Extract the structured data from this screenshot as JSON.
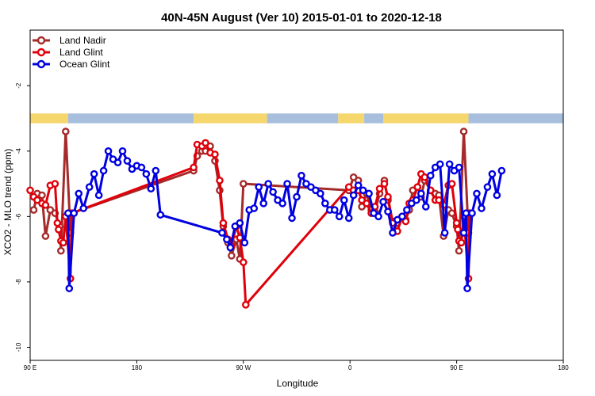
{
  "chart_data": {
    "type": "line",
    "title": "40N-45N August (Ver 10)   2015-01-01 to 2020-12-18",
    "xlabel": "Longitude",
    "ylabel": "XCO2 - MLO trend (ppm)",
    "xlim": [
      90,
      540
    ],
    "ylim": [
      -10.4,
      -0.3
    ],
    "x_ticks": [
      {
        "value": 90,
        "label": "90 E"
      },
      {
        "value": 180,
        "label": "180"
      },
      {
        "value": 270,
        "label": "90 W"
      },
      {
        "value": 360,
        "label": "0"
      },
      {
        "value": 450,
        "label": "90 E"
      },
      {
        "value": 540,
        "label": "180"
      }
    ],
    "y_ticks": [
      {
        "value": -2,
        "label": "-2"
      },
      {
        "value": -4,
        "label": "-4"
      },
      {
        "value": -6,
        "label": "-6"
      },
      {
        "value": -8,
        "label": "-8"
      },
      {
        "value": -10,
        "label": "-10"
      }
    ],
    "legend": {
      "placement": "top-left"
    },
    "series": [
      {
        "name": "Land Nadir",
        "color": "#a52a2a",
        "points": [
          [
            93,
            -5.8
          ],
          [
            96,
            -5.3
          ],
          [
            100,
            -5.35
          ],
          [
            103,
            -6.6
          ],
          [
            107,
            -5.8
          ],
          [
            111,
            -5.9
          ],
          [
            115,
            -6.3
          ],
          [
            116,
            -7.05
          ],
          [
            120,
            -3.4
          ],
          [
            124,
            -6.5
          ],
          [
            125,
            -5.9
          ],
          [
            228,
            -4.6
          ],
          [
            231,
            -4.15
          ],
          [
            235,
            -4.0
          ],
          [
            238,
            -4.0
          ],
          [
            242,
            -3.85
          ],
          [
            246,
            -4.3
          ],
          [
            250,
            -5.2
          ],
          [
            253,
            -6.3
          ],
          [
            257,
            -6.8
          ],
          [
            260,
            -7.2
          ],
          [
            264,
            -6.7
          ],
          [
            267,
            -7.3
          ],
          [
            270,
            -5.0
          ],
          [
            359,
            -5.2
          ],
          [
            363,
            -4.8
          ],
          [
            367,
            -4.9
          ],
          [
            370,
            -5.7
          ],
          [
            374,
            -5.3
          ],
          [
            378,
            -5.8
          ],
          [
            381,
            -5.85
          ],
          [
            385,
            -5.3
          ],
          [
            389,
            -4.9
          ],
          [
            392,
            -5.5
          ],
          [
            396,
            -6.15
          ],
          [
            400,
            -6.2
          ],
          [
            404,
            -6.0
          ],
          [
            407,
            -6.1
          ],
          [
            410,
            -5.8
          ],
          [
            413,
            -5.2
          ],
          [
            417,
            -5.1
          ],
          [
            420,
            -5.4
          ],
          [
            423,
            -4.9
          ],
          [
            428,
            -5.2
          ],
          [
            432,
            -5.3
          ],
          [
            435,
            -5.35
          ],
          [
            439,
            -6.6
          ],
          [
            443,
            -5.8
          ],
          [
            446,
            -5.9
          ],
          [
            450,
            -6.3
          ],
          [
            452,
            -7.05
          ],
          [
            456,
            -3.4
          ],
          [
            460,
            -6.5
          ],
          [
            461,
            -5.9
          ]
        ]
      },
      {
        "name": "Land Glint",
        "color": "#e0000a",
        "points": [
          [
            90,
            -5.2
          ],
          [
            93,
            -5.4
          ],
          [
            96,
            -5.5
          ],
          [
            100,
            -5.6
          ],
          [
            103,
            -5.65
          ],
          [
            107,
            -5.05
          ],
          [
            111,
            -5.0
          ],
          [
            113,
            -6.2
          ],
          [
            114,
            -6.4
          ],
          [
            116,
            -6.75
          ],
          [
            118,
            -6.8
          ],
          [
            120,
            -6.0
          ],
          [
            124,
            -7.9
          ],
          [
            125,
            -5.9
          ],
          [
            228,
            -4.5
          ],
          [
            231,
            -3.8
          ],
          [
            235,
            -3.85
          ],
          [
            238,
            -3.75
          ],
          [
            242,
            -4.05
          ],
          [
            246,
            -4.1
          ],
          [
            250,
            -4.9
          ],
          [
            253,
            -6.2
          ],
          [
            257,
            -6.7
          ],
          [
            260,
            -6.9
          ],
          [
            264,
            -6.3
          ],
          [
            267,
            -6.65
          ],
          [
            270,
            -7.4
          ],
          [
            272,
            -8.7
          ],
          [
            359,
            -5.1
          ],
          [
            363,
            -5.2
          ],
          [
            367,
            -5.2
          ],
          [
            370,
            -5.5
          ],
          [
            374,
            -5.6
          ],
          [
            378,
            -5.9
          ],
          [
            381,
            -5.7
          ],
          [
            385,
            -5.15
          ],
          [
            389,
            -5.0
          ],
          [
            392,
            -5.4
          ],
          [
            396,
            -6.2
          ],
          [
            400,
            -6.45
          ],
          [
            404,
            -6.0
          ],
          [
            407,
            -6.15
          ],
          [
            410,
            -5.6
          ],
          [
            413,
            -5.5
          ],
          [
            417,
            -5.1
          ],
          [
            420,
            -4.7
          ],
          [
            423,
            -4.8
          ],
          [
            428,
            -5.2
          ],
          [
            432,
            -5.5
          ],
          [
            435,
            -5.5
          ],
          [
            439,
            -5.65
          ],
          [
            443,
            -5.05
          ],
          [
            446,
            -5.0
          ],
          [
            450,
            -6.2
          ],
          [
            451,
            -6.4
          ],
          [
            452,
            -6.75
          ],
          [
            454,
            -6.8
          ],
          [
            456,
            -6.0
          ],
          [
            460,
            -7.9
          ],
          [
            461,
            -5.9
          ]
        ]
      },
      {
        "name": "Ocean Glint",
        "color": "#0000e0",
        "points": [
          [
            122,
            -5.9
          ],
          [
            123,
            -8.2
          ],
          [
            127,
            -5.9
          ],
          [
            131,
            -5.3
          ],
          [
            135,
            -5.75
          ],
          [
            140,
            -5.1
          ],
          [
            144,
            -4.7
          ],
          [
            148,
            -5.35
          ],
          [
            152,
            -4.6
          ],
          [
            156,
            -4.0
          ],
          [
            160,
            -4.25
          ],
          [
            164,
            -4.35
          ],
          [
            168,
            -4.0
          ],
          [
            172,
            -4.3
          ],
          [
            176,
            -4.55
          ],
          [
            180,
            -4.45
          ],
          [
            184,
            -4.5
          ],
          [
            188,
            -4.7
          ],
          [
            192,
            -5.15
          ],
          [
            196,
            -4.6
          ],
          [
            200,
            -5.95
          ],
          [
            252,
            -6.5
          ],
          [
            256,
            -6.7
          ],
          [
            259,
            -6.95
          ],
          [
            263,
            -6.3
          ],
          [
            267,
            -6.2
          ],
          [
            271,
            -6.8
          ],
          [
            275,
            -5.8
          ],
          [
            279,
            -5.75
          ],
          [
            283,
            -5.1
          ],
          [
            287,
            -5.6
          ],
          [
            291,
            -5.0
          ],
          [
            295,
            -5.25
          ],
          [
            299,
            -5.5
          ],
          [
            303,
            -5.6
          ],
          [
            307,
            -5.0
          ],
          [
            311,
            -6.05
          ],
          [
            315,
            -5.4
          ],
          [
            319,
            -4.75
          ],
          [
            323,
            -5.0
          ],
          [
            327,
            -5.1
          ],
          [
            331,
            -5.2
          ],
          [
            335,
            -5.3
          ],
          [
            339,
            -5.6
          ],
          [
            343,
            -5.8
          ],
          [
            347,
            -5.8
          ],
          [
            351,
            -6.0
          ],
          [
            355,
            -5.5
          ],
          [
            359,
            -6.05
          ],
          [
            363,
            -5.35
          ],
          [
            367,
            -5.05
          ],
          [
            371,
            -5.2
          ],
          [
            376,
            -5.3
          ],
          [
            380,
            -5.9
          ],
          [
            384,
            -6.0
          ],
          [
            388,
            -5.55
          ],
          [
            392,
            -5.85
          ],
          [
            396,
            -6.5
          ],
          [
            400,
            -6.1
          ],
          [
            404,
            -6.0
          ],
          [
            408,
            -5.8
          ],
          [
            412,
            -5.6
          ],
          [
            416,
            -5.5
          ],
          [
            420,
            -5.3
          ],
          [
            424,
            -5.7
          ],
          [
            428,
            -4.75
          ],
          [
            432,
            -4.5
          ],
          [
            436,
            -4.4
          ],
          [
            440,
            -6.5
          ],
          [
            444,
            -4.4
          ],
          [
            448,
            -4.6
          ],
          [
            452,
            -4.5
          ],
          [
            456,
            -6.5
          ],
          [
            458,
            -5.9
          ],
          [
            459,
            -8.2
          ],
          [
            463,
            -5.9
          ],
          [
            467,
            -5.3
          ],
          [
            471,
            -5.75
          ],
          [
            476,
            -5.1
          ],
          [
            480,
            -4.7
          ],
          [
            484,
            -5.35
          ],
          [
            488,
            -4.6
          ]
        ]
      }
    ],
    "coverage_band": {
      "y_range": [
        -3.15,
        -2.85
      ],
      "colors": {
        "land": "#f5d76e",
        "ocean": "#a7bedd"
      },
      "segments": [
        {
          "type": "land",
          "x": [
            90,
            122
          ]
        },
        {
          "type": "ocean",
          "x": [
            122,
            228
          ]
        },
        {
          "type": "land",
          "x": [
            228,
            290
          ]
        },
        {
          "type": "ocean",
          "x": [
            290,
            350
          ]
        },
        {
          "type": "land",
          "x": [
            350,
            372
          ]
        },
        {
          "type": "ocean",
          "x": [
            372,
            388
          ]
        },
        {
          "type": "land",
          "x": [
            388,
            460
          ]
        },
        {
          "type": "ocean",
          "x": [
            460,
            540
          ]
        }
      ]
    }
  }
}
